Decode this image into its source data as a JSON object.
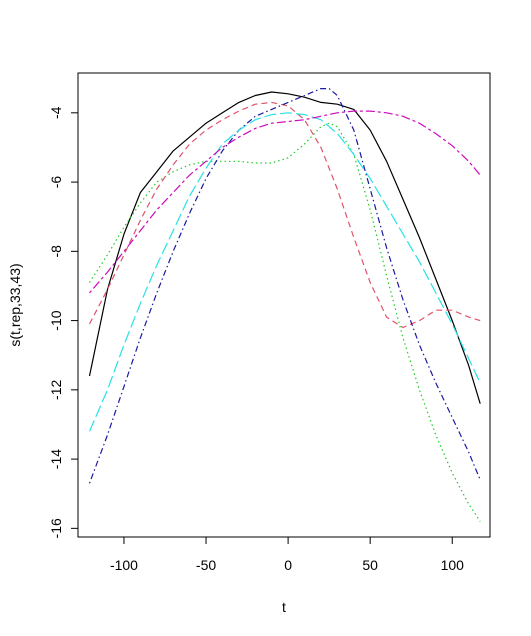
{
  "chart_data": {
    "type": "line",
    "title": "",
    "xlabel": "t",
    "ylabel": "s(t,rep,33,43)",
    "xlim": [
      -128,
      123
    ],
    "ylim": [
      -16.25,
      -2.85
    ],
    "xticks": [
      -100,
      -50,
      0,
      50,
      100
    ],
    "xtick_labels": [
      "-100",
      "-50",
      "0",
      "50",
      "100"
    ],
    "yticks": [
      -16,
      -14,
      -12,
      -10,
      -8,
      -6,
      -4
    ],
    "ytick_labels": [
      "-16",
      "-14",
      "-12",
      "-10",
      "-8",
      "-6",
      "-4"
    ],
    "grid": false,
    "legend": "none",
    "series": [
      {
        "color": "#000000",
        "linestyle": "solid",
        "points": [
          [
            -121,
            -11.6
          ],
          [
            -110,
            -9.1
          ],
          [
            -100,
            -7.5
          ],
          [
            -90,
            -6.3
          ],
          [
            -80,
            -5.7
          ],
          [
            -70,
            -5.1
          ],
          [
            -60,
            -4.7
          ],
          [
            -50,
            -4.3
          ],
          [
            -40,
            -4.0
          ],
          [
            -30,
            -3.7
          ],
          [
            -20,
            -3.5
          ],
          [
            -10,
            -3.4
          ],
          [
            0,
            -3.45
          ],
          [
            10,
            -3.55
          ],
          [
            20,
            -3.7
          ],
          [
            30,
            -3.75
          ],
          [
            40,
            -3.9
          ],
          [
            50,
            -4.5
          ],
          [
            60,
            -5.4
          ],
          [
            70,
            -6.5
          ],
          [
            80,
            -7.6
          ],
          [
            90,
            -8.8
          ],
          [
            100,
            -10.0
          ],
          [
            110,
            -11.3
          ],
          [
            117,
            -12.4
          ]
        ]
      },
      {
        "color": "#DF536B",
        "linestyle": "dashed",
        "points": [
          [
            -121,
            -10.1
          ],
          [
            -110,
            -9.1
          ],
          [
            -100,
            -8.1
          ],
          [
            -90,
            -7.1
          ],
          [
            -80,
            -6.2
          ],
          [
            -70,
            -5.5
          ],
          [
            -60,
            -4.9
          ],
          [
            -50,
            -4.5
          ],
          [
            -40,
            -4.2
          ],
          [
            -30,
            -3.95
          ],
          [
            -20,
            -3.75
          ],
          [
            -10,
            -3.7
          ],
          [
            0,
            -3.8
          ],
          [
            10,
            -4.2
          ],
          [
            20,
            -5.0
          ],
          [
            30,
            -6.2
          ],
          [
            40,
            -7.6
          ],
          [
            50,
            -8.9
          ],
          [
            60,
            -9.9
          ],
          [
            70,
            -10.2
          ],
          [
            80,
            -10.0
          ],
          [
            90,
            -9.7
          ],
          [
            100,
            -9.7
          ],
          [
            110,
            -9.9
          ],
          [
            117,
            -10.0
          ]
        ]
      },
      {
        "color": "#22CC22",
        "linestyle": "dotted",
        "points": [
          [
            -121,
            -8.9
          ],
          [
            -110,
            -8.1
          ],
          [
            -100,
            -7.3
          ],
          [
            -90,
            -6.6
          ],
          [
            -80,
            -6.0
          ],
          [
            -70,
            -5.7
          ],
          [
            -60,
            -5.5
          ],
          [
            -50,
            -5.4
          ],
          [
            -40,
            -5.4
          ],
          [
            -30,
            -5.4
          ],
          [
            -20,
            -5.45
          ],
          [
            -10,
            -5.45
          ],
          [
            0,
            -5.3
          ],
          [
            10,
            -4.9
          ],
          [
            20,
            -4.4
          ],
          [
            25,
            -4.3
          ],
          [
            30,
            -4.4
          ],
          [
            40,
            -5.2
          ],
          [
            50,
            -6.8
          ],
          [
            60,
            -8.7
          ],
          [
            70,
            -10.5
          ],
          [
            80,
            -12.0
          ],
          [
            90,
            -13.3
          ],
          [
            100,
            -14.4
          ],
          [
            110,
            -15.3
          ],
          [
            117,
            -15.8
          ]
        ]
      },
      {
        "color": "#1A1A9E",
        "linestyle": "dashdot",
        "points": [
          [
            -121,
            -14.7
          ],
          [
            -110,
            -13.3
          ],
          [
            -100,
            -11.9
          ],
          [
            -90,
            -10.5
          ],
          [
            -80,
            -9.2
          ],
          [
            -70,
            -8.0
          ],
          [
            -60,
            -6.9
          ],
          [
            -50,
            -5.9
          ],
          [
            -40,
            -5.1
          ],
          [
            -30,
            -4.5
          ],
          [
            -20,
            -4.1
          ],
          [
            -10,
            -3.9
          ],
          [
            0,
            -3.7
          ],
          [
            10,
            -3.5
          ],
          [
            20,
            -3.3
          ],
          [
            25,
            -3.3
          ],
          [
            30,
            -3.5
          ],
          [
            40,
            -4.5
          ],
          [
            50,
            -6.2
          ],
          [
            60,
            -7.9
          ],
          [
            70,
            -9.4
          ],
          [
            80,
            -10.7
          ],
          [
            90,
            -11.8
          ],
          [
            100,
            -12.8
          ],
          [
            110,
            -13.8
          ],
          [
            117,
            -14.6
          ]
        ]
      },
      {
        "color": "#28E2E5",
        "linestyle": "longdash",
        "points": [
          [
            -121,
            -13.2
          ],
          [
            -110,
            -12.0
          ],
          [
            -100,
            -10.7
          ],
          [
            -90,
            -9.5
          ],
          [
            -80,
            -8.4
          ],
          [
            -70,
            -7.4
          ],
          [
            -60,
            -6.4
          ],
          [
            -50,
            -5.6
          ],
          [
            -40,
            -4.9
          ],
          [
            -30,
            -4.5
          ],
          [
            -20,
            -4.2
          ],
          [
            -10,
            -4.05
          ],
          [
            0,
            -4.0
          ],
          [
            10,
            -4.05
          ],
          [
            20,
            -4.2
          ],
          [
            30,
            -4.6
          ],
          [
            40,
            -5.2
          ],
          [
            50,
            -5.9
          ],
          [
            60,
            -6.7
          ],
          [
            70,
            -7.5
          ],
          [
            80,
            -8.3
          ],
          [
            90,
            -9.2
          ],
          [
            100,
            -10.1
          ],
          [
            110,
            -11.1
          ],
          [
            117,
            -11.8
          ]
        ]
      },
      {
        "color": "#CD0BBC",
        "linestyle": "twodash",
        "points": [
          [
            -121,
            -9.2
          ],
          [
            -110,
            -8.6
          ],
          [
            -100,
            -8.0
          ],
          [
            -90,
            -7.4
          ],
          [
            -80,
            -6.8
          ],
          [
            -70,
            -6.3
          ],
          [
            -60,
            -5.8
          ],
          [
            -50,
            -5.4
          ],
          [
            -40,
            -5.0
          ],
          [
            -30,
            -4.7
          ],
          [
            -20,
            -4.45
          ],
          [
            -10,
            -4.3
          ],
          [
            0,
            -4.25
          ],
          [
            10,
            -4.2
          ],
          [
            20,
            -4.1
          ],
          [
            30,
            -4.0
          ],
          [
            40,
            -3.95
          ],
          [
            50,
            -3.95
          ],
          [
            60,
            -4.0
          ],
          [
            70,
            -4.1
          ],
          [
            80,
            -4.3
          ],
          [
            90,
            -4.6
          ],
          [
            100,
            -4.95
          ],
          [
            110,
            -5.4
          ],
          [
            117,
            -5.8
          ]
        ]
      }
    ]
  }
}
